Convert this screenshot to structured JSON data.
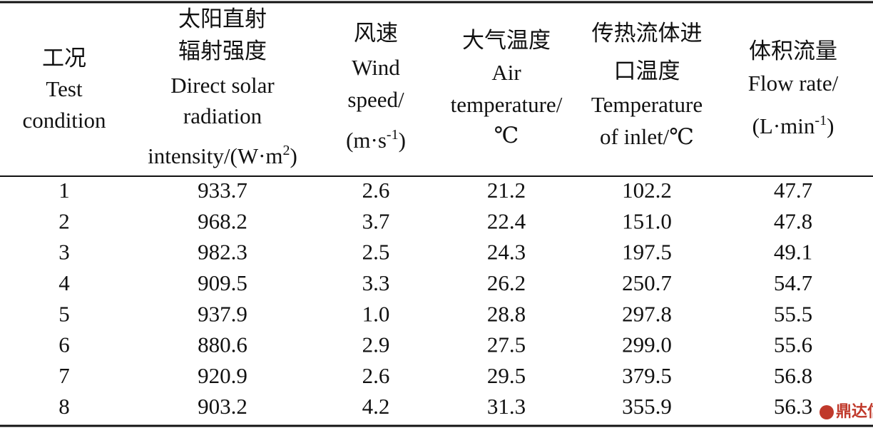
{
  "table": {
    "header": [
      {
        "lines": [
          [
            "工况"
          ],
          [
            "Test"
          ],
          [
            "condition"
          ]
        ]
      },
      {
        "lines": [
          [
            "太阳直射"
          ],
          [
            "辐射强度"
          ],
          [
            "Direct solar"
          ],
          [
            "radiation"
          ],
          [
            "intensity/(W·m",
            {
              "sup": "2"
            },
            ")"
          ]
        ]
      },
      {
        "lines": [
          [
            "风速"
          ],
          [
            "Wind"
          ],
          [
            "speed/"
          ],
          [
            "(m·s",
            {
              "sup": "-1"
            },
            ")"
          ]
        ]
      },
      {
        "lines": [
          [
            "大气温度"
          ],
          [
            "Air"
          ],
          [
            "temperature/"
          ],
          [
            "℃"
          ]
        ]
      },
      {
        "lines": [
          [
            "传热流体进"
          ],
          [
            "口温度"
          ],
          [
            "Temperature"
          ],
          [
            "of inlet/℃"
          ]
        ]
      },
      {
        "lines": [
          [
            "体积流量"
          ],
          [
            "Flow rate/"
          ],
          [
            "(L·min",
            {
              "sup": "-1"
            },
            ")"
          ]
        ]
      }
    ],
    "rows": [
      [
        "1",
        "933.7",
        "2.6",
        "21.2",
        "102.2",
        "47.7"
      ],
      [
        "2",
        "968.2",
        "3.7",
        "22.4",
        "151.0",
        "47.8"
      ],
      [
        "3",
        "982.3",
        "2.5",
        "24.3",
        "197.5",
        "49.1"
      ],
      [
        "4",
        "909.5",
        "3.3",
        "26.2",
        "250.7",
        "54.7"
      ],
      [
        "5",
        "937.9",
        "1.0",
        "28.8",
        "297.8",
        "55.5"
      ],
      [
        "6",
        "880.6",
        "2.9",
        "27.5",
        "299.0",
        "55.6"
      ],
      [
        "7",
        "920.9",
        "2.6",
        "29.5",
        "379.5",
        "56.8"
      ],
      [
        "8",
        "903.2",
        "4.2",
        "31.3",
        "355.9",
        "56.3"
      ]
    ]
  },
  "watermark": "鼎达信"
}
